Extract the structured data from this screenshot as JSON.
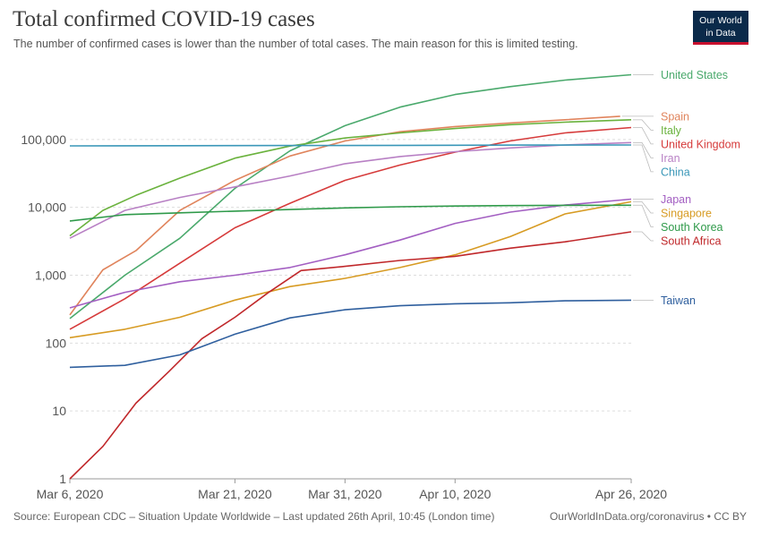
{
  "header": {
    "title": "Total confirmed COVID-19 cases",
    "subtitle": "The number of confirmed cases is lower than the number of total cases. The main reason for this is limited testing.",
    "logo_line1": "Our World",
    "logo_line2": "in Data"
  },
  "footer": {
    "source": "Source: European CDC – Situation Update Worldwide – Last updated 26th April, 10:45 (London time)",
    "credit": "OurWorldInData.org/coronavirus • CC BY"
  },
  "chart_data": {
    "type": "line",
    "title": "Total confirmed COVID-19 cases",
    "subtitle": "The number of confirmed cases is lower than the number of total cases. The main reason for this is limited testing.",
    "y_scale": "log",
    "ylim": [
      1,
      1000000
    ],
    "xlim": [
      "2020-03-06",
      "2020-04-26"
    ],
    "x_ticks": [
      {
        "date": "2020-03-06",
        "label": "Mar 6, 2020"
      },
      {
        "date": "2020-03-21",
        "label": "Mar 21, 2020"
      },
      {
        "date": "2020-03-31",
        "label": "Mar 31, 2020"
      },
      {
        "date": "2020-04-10",
        "label": "Apr 10, 2020"
      },
      {
        "date": "2020-04-26",
        "label": "Apr 26, 2020"
      }
    ],
    "y_ticks": [
      {
        "value": 1,
        "label": "1"
      },
      {
        "value": 10,
        "label": "10"
      },
      {
        "value": 100,
        "label": "100"
      },
      {
        "value": 1000,
        "label": "1,000"
      },
      {
        "value": 10000,
        "label": "10,000"
      },
      {
        "value": 100000,
        "label": "100,000"
      }
    ],
    "grid": "horizontal dashed",
    "legend": "labels at right end of lines",
    "series": [
      {
        "name": "United States",
        "color": "#4aa96c",
        "points": [
          [
            "2020-03-06",
            230
          ],
          [
            "2020-03-11",
            1000
          ],
          [
            "2020-03-16",
            3500
          ],
          [
            "2020-03-21",
            19000
          ],
          [
            "2020-03-26",
            68000
          ],
          [
            "2020-03-31",
            160000
          ],
          [
            "2020-04-05",
            300000
          ],
          [
            "2020-04-10",
            460000
          ],
          [
            "2020-04-15",
            600000
          ],
          [
            "2020-04-20",
            750000
          ],
          [
            "2020-04-26",
            900000
          ]
        ]
      },
      {
        "name": "Spain",
        "color": "#e0845c",
        "points": [
          [
            "2020-03-06",
            260
          ],
          [
            "2020-03-09",
            1200
          ],
          [
            "2020-03-12",
            2300
          ],
          [
            "2020-03-16",
            9000
          ],
          [
            "2020-03-21",
            25000
          ],
          [
            "2020-03-26",
            57000
          ],
          [
            "2020-03-31",
            95000
          ],
          [
            "2020-04-05",
            130000
          ],
          [
            "2020-04-10",
            155000
          ],
          [
            "2020-04-15",
            175000
          ],
          [
            "2020-04-20",
            195000
          ],
          [
            "2020-04-25",
            220000
          ]
        ]
      },
      {
        "name": "Italy",
        "color": "#6ab23d",
        "points": [
          [
            "2020-03-06",
            3800
          ],
          [
            "2020-03-09",
            9000
          ],
          [
            "2020-03-12",
            15000
          ],
          [
            "2020-03-16",
            27000
          ],
          [
            "2020-03-21",
            53000
          ],
          [
            "2020-03-26",
            80000
          ],
          [
            "2020-03-31",
            105000
          ],
          [
            "2020-04-05",
            125000
          ],
          [
            "2020-04-10",
            145000
          ],
          [
            "2020-04-15",
            165000
          ],
          [
            "2020-04-20",
            180000
          ],
          [
            "2020-04-26",
            195000
          ]
        ]
      },
      {
        "name": "United Kingdom",
        "color": "#d63b3b",
        "points": [
          [
            "2020-03-06",
            160
          ],
          [
            "2020-03-11",
            450
          ],
          [
            "2020-03-16",
            1500
          ],
          [
            "2020-03-21",
            5000
          ],
          [
            "2020-03-26",
            11500
          ],
          [
            "2020-03-31",
            25000
          ],
          [
            "2020-04-05",
            42000
          ],
          [
            "2020-04-10",
            65000
          ],
          [
            "2020-04-15",
            95000
          ],
          [
            "2020-04-20",
            125000
          ],
          [
            "2020-04-26",
            150000
          ]
        ]
      },
      {
        "name": "Iran",
        "color": "#b880c4",
        "points": [
          [
            "2020-03-06",
            3500
          ],
          [
            "2020-03-11",
            9000
          ],
          [
            "2020-03-16",
            14000
          ],
          [
            "2020-03-21",
            20000
          ],
          [
            "2020-03-26",
            29000
          ],
          [
            "2020-03-31",
            44000
          ],
          [
            "2020-04-05",
            56000
          ],
          [
            "2020-04-10",
            66000
          ],
          [
            "2020-04-15",
            75000
          ],
          [
            "2020-04-20",
            83000
          ],
          [
            "2020-04-26",
            90000
          ]
        ]
      },
      {
        "name": "China",
        "color": "#3a97b8",
        "points": [
          [
            "2020-03-06",
            80500
          ],
          [
            "2020-03-16",
            81000
          ],
          [
            "2020-03-26",
            81500
          ],
          [
            "2020-04-06",
            82000
          ],
          [
            "2020-04-16",
            82700
          ],
          [
            "2020-04-26",
            83000
          ]
        ]
      },
      {
        "name": "Japan",
        "color": "#a35fc2",
        "points": [
          [
            "2020-03-06",
            330
          ],
          [
            "2020-03-11",
            560
          ],
          [
            "2020-03-16",
            800
          ],
          [
            "2020-03-21",
            1000
          ],
          [
            "2020-03-26",
            1300
          ],
          [
            "2020-03-31",
            2000
          ],
          [
            "2020-04-05",
            3300
          ],
          [
            "2020-04-10",
            5800
          ],
          [
            "2020-04-15",
            8500
          ],
          [
            "2020-04-20",
            10800
          ],
          [
            "2020-04-26",
            13200
          ]
        ]
      },
      {
        "name": "Singapore",
        "color": "#d79b23",
        "points": [
          [
            "2020-03-06",
            120
          ],
          [
            "2020-03-11",
            160
          ],
          [
            "2020-03-16",
            240
          ],
          [
            "2020-03-21",
            430
          ],
          [
            "2020-03-26",
            680
          ],
          [
            "2020-03-31",
            900
          ],
          [
            "2020-04-05",
            1300
          ],
          [
            "2020-04-10",
            2000
          ],
          [
            "2020-04-15",
            3700
          ],
          [
            "2020-04-20",
            8000
          ],
          [
            "2020-04-26",
            12100
          ]
        ]
      },
      {
        "name": "South Korea",
        "color": "#2f9a4a",
        "points": [
          [
            "2020-03-06",
            6300
          ],
          [
            "2020-03-11",
            7800
          ],
          [
            "2020-03-16",
            8300
          ],
          [
            "2020-03-21",
            8800
          ],
          [
            "2020-03-26",
            9300
          ],
          [
            "2020-03-31",
            9800
          ],
          [
            "2020-04-05",
            10200
          ],
          [
            "2020-04-10",
            10450
          ],
          [
            "2020-04-15",
            10600
          ],
          [
            "2020-04-20",
            10700
          ],
          [
            "2020-04-26",
            10750
          ]
        ]
      },
      {
        "name": "South Africa",
        "color": "#c0282b",
        "points": [
          [
            "2020-03-06",
            1
          ],
          [
            "2020-03-09",
            3
          ],
          [
            "2020-03-12",
            13
          ],
          [
            "2020-03-15",
            38
          ],
          [
            "2020-03-18",
            116
          ],
          [
            "2020-03-21",
            240
          ],
          [
            "2020-03-24",
            550
          ],
          [
            "2020-03-27",
            1170
          ],
          [
            "2020-03-31",
            1350
          ],
          [
            "2020-04-05",
            1650
          ],
          [
            "2020-04-10",
            1900
          ],
          [
            "2020-04-15",
            2500
          ],
          [
            "2020-04-20",
            3100
          ],
          [
            "2020-04-26",
            4360
          ]
        ]
      },
      {
        "name": "Taiwan",
        "color": "#2f5f9e",
        "points": [
          [
            "2020-03-06",
            44
          ],
          [
            "2020-03-11",
            47
          ],
          [
            "2020-03-16",
            67
          ],
          [
            "2020-03-21",
            135
          ],
          [
            "2020-03-26",
            235
          ],
          [
            "2020-03-31",
            310
          ],
          [
            "2020-04-05",
            355
          ],
          [
            "2020-04-10",
            380
          ],
          [
            "2020-04-15",
            393
          ],
          [
            "2020-04-20",
            420
          ],
          [
            "2020-04-26",
            429
          ]
        ]
      }
    ]
  }
}
